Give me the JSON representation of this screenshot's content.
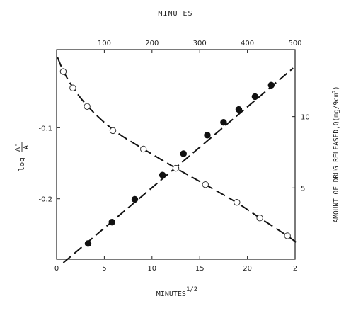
{
  "chart_data": {
    "type": "scatter",
    "title": "",
    "top_axis": {
      "label": "MINUTES",
      "ticks": [
        100,
        200,
        300,
        400,
        500
      ],
      "range": [
        0,
        500
      ]
    },
    "bottom_axis": {
      "label": "MINUTES",
      "label_exponent": "1/2",
      "ticks": [
        "0",
        "5",
        "10",
        "15",
        "20",
        "2"
      ],
      "range": [
        0,
        25
      ]
    },
    "left_axis": {
      "label_prefix": "log",
      "label_numerator": "A'",
      "label_denominator": "A",
      "ticks": [
        "-0.1",
        "-0.2"
      ],
      "range": [
        -0.285,
        0.01
      ]
    },
    "right_axis": {
      "label_main": "AMOUNT OF DRUG RELEASED,Q(mg/9cm",
      "label_sup": "2",
      "label_tail": ")",
      "ticks": [
        "10",
        "5"
      ],
      "range": [
        0,
        14.7
      ]
    },
    "grid": false,
    "legend": "none",
    "series": [
      {
        "marker": "open-circle",
        "axis": "left",
        "x": [
          0.7,
          1.7,
          3.2,
          5.9,
          9.1,
          12.5,
          15.6,
          18.9,
          21.3,
          24.2
        ],
        "y": [
          -0.021,
          -0.044,
          -0.07,
          -0.104,
          -0.13,
          -0.157,
          -0.18,
          -0.205,
          -0.227,
          -0.252
        ]
      },
      {
        "marker": "filled-circle",
        "axis": "right",
        "x": [
          3.3,
          5.8,
          8.2,
          11.1,
          13.3,
          15.8,
          17.5,
          19.1,
          20.8,
          22.5
        ],
        "y": [
          1.1,
          2.6,
          4.2,
          5.9,
          7.4,
          8.7,
          9.6,
          10.5,
          11.4,
          12.2
        ]
      }
    ]
  }
}
